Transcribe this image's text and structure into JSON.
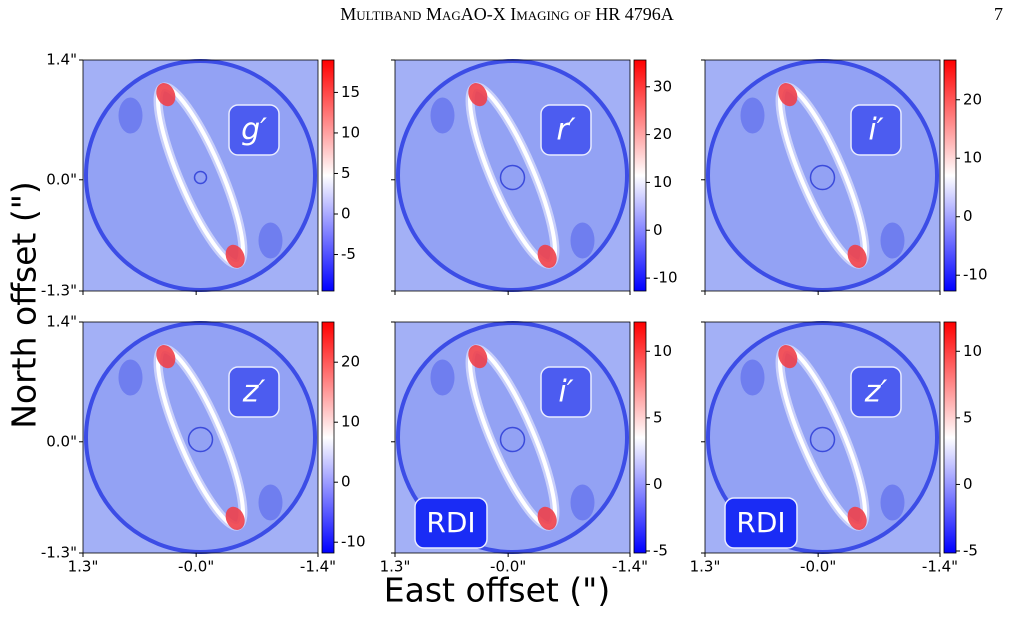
{
  "header": {
    "title": "Multiband MagAO-X Imaging of HR 4796A",
    "page": "7"
  },
  "figure": {
    "ylabel": "North offset (\")",
    "xlabel": "East offset (\")",
    "xlim": [
      1.3,
      -1.4
    ],
    "ylim": [
      -1.3,
      1.4
    ],
    "xticks": [
      {
        "value": 1.3,
        "label": "1.3\""
      },
      {
        "value": 0,
        "label": "-0.0\""
      },
      {
        "value": -1.4,
        "label": "-1.4\""
      }
    ],
    "yticks": [
      {
        "value": 1.4,
        "label": "1.4\""
      },
      {
        "value": 0,
        "label": "0.0\""
      },
      {
        "value": -1.3,
        "label": "-1.3\""
      }
    ],
    "panels": [
      {
        "band": "g′",
        "clim": [
          -9.5,
          19
        ],
        "cticks": [
          -5,
          0,
          5,
          10,
          15
        ]
      },
      {
        "band": "r′",
        "clim": [
          -12.7,
          35.6
        ],
        "cticks": [
          -10,
          0,
          10,
          20,
          30
        ]
      },
      {
        "band": "i′",
        "clim": [
          -12.7,
          26.8
        ],
        "cticks": [
          -10,
          0,
          10,
          20
        ]
      },
      {
        "band": "z′",
        "clim": [
          -11.8,
          26.7
        ],
        "cticks": [
          -10,
          0,
          10,
          20
        ]
      },
      {
        "band": "i′",
        "method": "RDI",
        "clim": [
          -5.15,
          12.2
        ],
        "cticks": [
          -5,
          0,
          5,
          10
        ]
      },
      {
        "band": "z′",
        "method": "RDI",
        "clim": [
          -5.15,
          12.2
        ],
        "cticks": [
          -5,
          0,
          5,
          10
        ]
      }
    ]
  }
}
